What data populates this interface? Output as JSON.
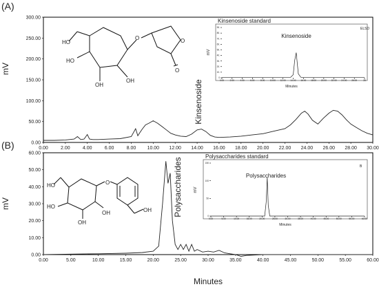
{
  "figure": {
    "xlabel": "Minutes",
    "panel_a": {
      "label": "(A)",
      "ylabel": "mV",
      "annotation": "Kinsenoside",
      "inset": {
        "title": "Kinsenoside standard",
        "corner_tag": "ELSD",
        "peak_label": "Kinsenoside",
        "xlabel": "Minutes",
        "ylabel": "mV"
      }
    },
    "panel_b": {
      "label": "(B)",
      "ylabel": "mV",
      "annotation": "Polysaccharides",
      "inset": {
        "title": "Polysaccharides standard",
        "corner_tag": "B",
        "peak_label": "Polysaccharides",
        "xlabel": "Minutes",
        "ylabel": "mV"
      }
    }
  },
  "chart_data": [
    {
      "type": "line",
      "panel": "A",
      "xlabel": "Minutes",
      "ylabel": "mV",
      "xlim": [
        0,
        30
      ],
      "ylim": [
        0,
        300
      ],
      "x_ticks": [
        "0.00",
        "2.00",
        "4.00",
        "6.00",
        "8.00",
        "10.00",
        "12.00",
        "14.00",
        "16.00",
        "18.00",
        "20.00",
        "22.00",
        "24.00",
        "26.00",
        "28.00",
        "30.00"
      ],
      "y_ticks": [
        "0.00",
        "50.00",
        "100.00",
        "150.00",
        "200.00",
        "250.00",
        "300.00"
      ],
      "series": [
        {
          "x": [
            0,
            1,
            2,
            2.8,
            3.1,
            3.4,
            3.7,
            4.0,
            4.2,
            4.5,
            5,
            6,
            7,
            8,
            8.4,
            8.6,
            8.8,
            9.0,
            9.3,
            9.6,
            10.0,
            10.4,
            10.8,
            11.2,
            11.6,
            12,
            12.5,
            13,
            13.5,
            14.0,
            14.4,
            14.8,
            15.2,
            15.6,
            16,
            17,
            18,
            19,
            20,
            21,
            22,
            22.5,
            23,
            23.5,
            23.8,
            24.1,
            24.5,
            25,
            25.5,
            26,
            26.4,
            26.8,
            27.2,
            27.6,
            28,
            28.5,
            29,
            29.5,
            30
          ],
          "y": [
            5,
            5,
            6,
            8,
            14,
            7,
            8,
            19,
            8,
            7,
            7,
            8,
            9,
            14,
            33,
            16,
            24,
            32,
            42,
            46,
            52,
            46,
            38,
            30,
            22,
            18,
            15,
            14,
            20,
            30,
            32,
            26,
            17,
            13,
            12,
            13,
            15,
            18,
            21,
            27,
            33,
            42,
            55,
            70,
            75,
            68,
            53,
            44,
            58,
            70,
            77,
            75,
            66,
            54,
            44,
            36,
            28,
            22,
            18
          ]
        }
      ],
      "inset": {
        "title": "Kinsenoside standard",
        "xlabel": "Minutes",
        "ylabel": "mV",
        "xlim": [
          0,
          28
        ],
        "ylim": [
          0,
          100
        ],
        "x_ticks": [
          "0.00",
          "2.00",
          "4.00",
          "6.00",
          "8.00",
          "10.00",
          "12.00",
          "14.00",
          "16.00",
          "18.00",
          "20.00",
          "22.00",
          "24.00",
          "26.00",
          "28"
        ],
        "y_ticks": [
          "0",
          "10.",
          "20.",
          "30.",
          "40.",
          "50.",
          "60.",
          "70.",
          "80.",
          "90."
        ],
        "series": [
          {
            "x": [
              0,
              13.5,
              14.0,
              14.3,
              14.6,
              15.0,
              15.5,
              28
            ],
            "y": [
              1,
              1,
              6,
              35,
              50,
              8,
              1,
              1
            ]
          }
        ]
      }
    },
    {
      "type": "line",
      "panel": "B",
      "xlabel": "Minutes",
      "ylabel": "mV",
      "xlim": [
        0,
        60
      ],
      "ylim": [
        0,
        60
      ],
      "x_ticks": [
        "0.00",
        "5.00",
        "10.00",
        "15.00",
        "20.00",
        "25.00",
        "30.00",
        "35.00",
        "40.00",
        "45.00",
        "50.00",
        "55.00",
        "60.00"
      ],
      "y_ticks": [
        "0.00",
        "10.00",
        "20.00",
        "30.00",
        "40.00",
        "50.00",
        "60.00"
      ],
      "series": [
        {
          "x": [
            0,
            5,
            10,
            15,
            18,
            20,
            21,
            21.7,
            22.3,
            22.7,
            23.1,
            23.5,
            24,
            24.5,
            25,
            25.5,
            26,
            26.5,
            27,
            27.5,
            28,
            29,
            30,
            31,
            32,
            33,
            34,
            35,
            36,
            37,
            40,
            45,
            50,
            55,
            60
          ],
          "y": [
            0,
            0.3,
            0.5,
            0.8,
            1.2,
            2,
            5,
            30,
            55,
            42,
            48,
            20,
            6,
            3,
            6,
            3,
            6,
            2,
            6,
            2,
            3,
            1.5,
            2,
            1.5,
            2.5,
            1,
            0.5,
            0,
            -1,
            -0.5,
            0,
            0,
            0,
            0,
            0
          ]
        }
      ],
      "inset": {
        "title": "Polysaccharides standard",
        "xlabel": "Minutes",
        "ylabel": "mV",
        "xlim": [
          0,
          60
        ],
        "ylim": [
          0,
          150
        ],
        "x_ticks": [
          "0.00",
          "5.00",
          "10.00",
          "15.00",
          "20.00",
          "25.00",
          "30.00",
          "35.00",
          "40.00",
          "45.00",
          "50.00",
          "55.00",
          "60.00"
        ],
        "y_ticks": [
          "0",
          "50",
          "100",
          "150"
        ],
        "series": [
          {
            "x": [
              0,
              21.0,
              21.6,
              22.0,
              22.4,
              23.0,
              60
            ],
            "y": [
              0,
              0,
              40,
              110,
              30,
              0,
              0
            ]
          }
        ]
      }
    }
  ]
}
